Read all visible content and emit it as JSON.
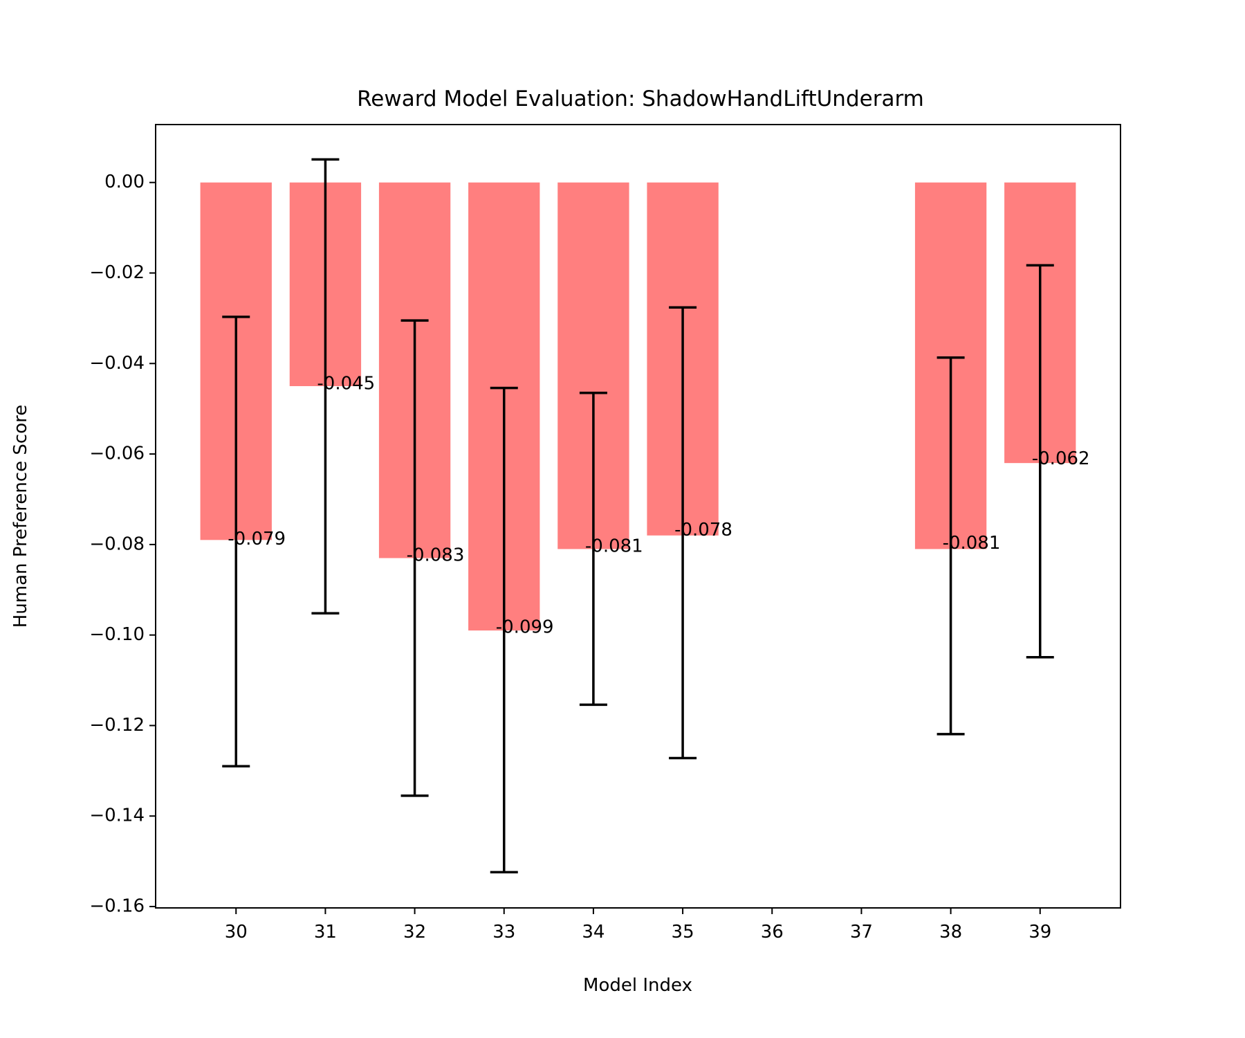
{
  "chart_data": {
    "type": "bar",
    "title": "Reward Model Evaluation: ShadowHandLiftUnderarm",
    "xlabel": "Model Index",
    "ylabel": "Human Preference Score",
    "x_ticks": [
      "30",
      "31",
      "32",
      "33",
      "34",
      "35",
      "36",
      "37",
      "38",
      "39"
    ],
    "y_ticks": [
      "0.00",
      "−0.02",
      "−0.04",
      "−0.06",
      "−0.08",
      "−0.10",
      "−0.12",
      "−0.14",
      "−0.16"
    ],
    "y_tick_values": [
      0.0,
      -0.02,
      -0.04,
      -0.06,
      -0.08,
      -0.1,
      -0.12,
      -0.14,
      -0.16
    ],
    "xlim": [
      29.1,
      39.9
    ],
    "ylim": [
      -0.1603,
      0.0128
    ],
    "bar_color": "#ff7f7f",
    "bars": [
      {
        "x": 30,
        "value": -0.079,
        "err_low": -0.129,
        "err_high": -0.0297,
        "label": "-0.079"
      },
      {
        "x": 31,
        "value": -0.045,
        "err_low": -0.0952,
        "err_high": 0.0051,
        "label": "-0.045"
      },
      {
        "x": 32,
        "value": -0.083,
        "err_low": -0.1355,
        "err_high": -0.0305,
        "label": "-0.083"
      },
      {
        "x": 33,
        "value": -0.099,
        "err_low": -0.1524,
        "err_high": -0.0454,
        "label": "-0.099"
      },
      {
        "x": 34,
        "value": -0.081,
        "err_low": -0.1154,
        "err_high": -0.0465,
        "label": "-0.081"
      },
      {
        "x": 35,
        "value": -0.078,
        "err_low": -0.1272,
        "err_high": -0.0276,
        "label": "-0.078"
      },
      {
        "x": 38,
        "value": -0.081,
        "err_low": -0.1219,
        "err_high": -0.0387,
        "label": "-0.081"
      },
      {
        "x": 39,
        "value": -0.062,
        "err_low": -0.1049,
        "err_high": -0.0183,
        "label": "-0.062"
      }
    ]
  }
}
